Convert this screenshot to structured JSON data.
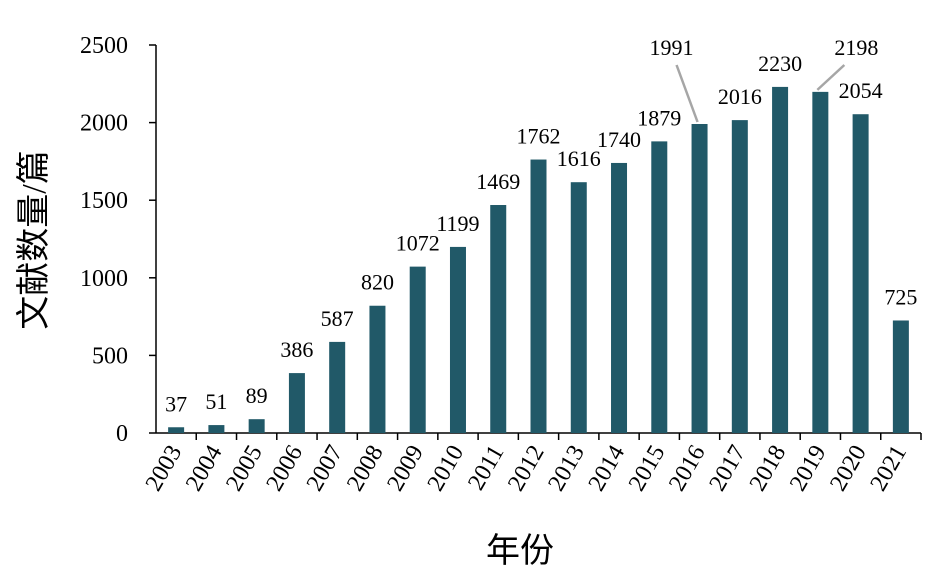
{
  "chart_data": {
    "type": "bar",
    "categories": [
      "2003",
      "2004",
      "2005",
      "2006",
      "2007",
      "2008",
      "2009",
      "2010",
      "2011",
      "2012",
      "2013",
      "2014",
      "2015",
      "2016",
      "2017",
      "2018",
      "2019",
      "2020",
      "2021"
    ],
    "values": [
      37,
      51,
      89,
      386,
      587,
      820,
      1072,
      1199,
      1469,
      1762,
      1616,
      1740,
      1879,
      1991,
      2016,
      2230,
      2198,
      2054,
      725
    ],
    "xlabel": "年份",
    "ylabel": "文献数量/篇",
    "ylim": [
      0,
      2500
    ],
    "yticks": [
      0,
      500,
      1000,
      1500,
      2000,
      2500
    ],
    "grid": false,
    "legend": "none",
    "colors": {
      "bar": "#215968",
      "axis": "#000000",
      "leader": "#a6a6a6"
    },
    "callouts": [
      "1991",
      "2198"
    ]
  }
}
